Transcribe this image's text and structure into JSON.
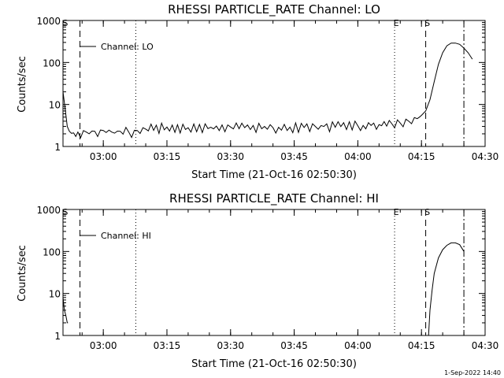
{
  "footer_timestamp": "1-Sep-2022 14:40",
  "chart_data": [
    {
      "type": "line",
      "title": "RHESSI PARTICLE_RATE Channel: LO",
      "xlabel": "Start Time (21-Oct-16 02:50:30)",
      "ylabel": "Counts/sec",
      "yscale": "log",
      "ylim": [
        1,
        1000
      ],
      "xlim": [
        "02:50:30",
        "04:30:00"
      ],
      "x_ticks": [
        "03:00",
        "03:15",
        "03:30",
        "03:45",
        "04:00",
        "04:15",
        "04:30"
      ],
      "y_ticks": [
        "1",
        "10",
        "100",
        "1000"
      ],
      "legend": "Channel: LO",
      "legend_position": "top-left",
      "markers": [
        {
          "label": "S",
          "time": "02:50:40",
          "style": "none"
        },
        {
          "label": "",
          "time": "02:54:30",
          "style": "dashed"
        },
        {
          "label": "",
          "time": "03:07:40",
          "style": "dotted"
        },
        {
          "label": "E",
          "time": "04:08:40",
          "style": "dotted"
        },
        {
          "label": "S",
          "time": "04:16:00",
          "style": "dashed"
        },
        {
          "label": "",
          "time": "04:25:00",
          "style": "dashdot"
        }
      ],
      "series": [
        {
          "name": "Channel: LO",
          "x": [
            "02:50:30",
            "02:51:00",
            "02:51:30",
            "02:52:00",
            "02:53:00",
            "02:54:00",
            "02:56:00",
            "02:58:00",
            "03:00:00",
            "03:02:00",
            "03:04:00",
            "03:06:00",
            "03:08:00",
            "03:10:00",
            "03:15:00",
            "03:20:00",
            "03:30:00",
            "03:40:00",
            "03:50:00",
            "04:00:00",
            "04:05:00",
            "04:08:00",
            "04:10:00",
            "04:12:00",
            "04:14:00",
            "04:15:00",
            "04:16:00",
            "04:17:00",
            "04:18:00",
            "04:19:00",
            "04:20:00",
            "04:21:00",
            "04:22:00",
            "04:23:00",
            "04:24:00",
            "04:25:00",
            "04:26:00",
            "04:27:00"
          ],
          "y": [
            20,
            8,
            3,
            2.3,
            2.1,
            2.2,
            2.2,
            2.3,
            2.4,
            2.2,
            2.3,
            2.2,
            2.4,
            2.6,
            2.9,
            2.8,
            2.9,
            2.8,
            3.0,
            3.1,
            3.3,
            3.5,
            3.6,
            4.0,
            4.6,
            5.5,
            7,
            13,
            35,
            90,
            170,
            250,
            290,
            290,
            270,
            220,
            170,
            120
          ],
          "noise": "spiky"
        }
      ]
    },
    {
      "type": "line",
      "title": "RHESSI PARTICLE_RATE Channel: HI",
      "xlabel": "Start Time (21-Oct-16 02:50:30)",
      "ylabel": "Counts/sec",
      "yscale": "log",
      "ylim": [
        1,
        1000
      ],
      "xlim": [
        "02:50:30",
        "04:30:00"
      ],
      "x_ticks": [
        "03:00",
        "03:15",
        "03:30",
        "03:45",
        "04:00",
        "04:15",
        "04:30"
      ],
      "y_ticks": [
        "1",
        "10",
        "100",
        "1000"
      ],
      "legend": "Channel: HI",
      "legend_position": "top-left",
      "markers": [
        {
          "label": "S",
          "time": "02:50:40",
          "style": "none"
        },
        {
          "label": "",
          "time": "02:54:30",
          "style": "dashed"
        },
        {
          "label": "",
          "time": "03:07:40",
          "style": "dotted"
        },
        {
          "label": "E",
          "time": "04:08:40",
          "style": "dotted"
        },
        {
          "label": "S",
          "time": "04:16:00",
          "style": "dashed"
        },
        {
          "label": "",
          "time": "04:25:00",
          "style": "dashdot"
        }
      ],
      "series": [
        {
          "name": "Channel: HI",
          "x": [
            "02:50:30",
            "02:50:50",
            "02:51:10",
            "02:51:30",
            "02:51:40"
          ],
          "y": [
            8,
            4,
            3,
            2,
            2
          ],
          "noise": "none"
        },
        {
          "name": "Channel: HI",
          "x": [
            "04:16:40",
            "04:17:00",
            "04:17:30",
            "04:18:00",
            "04:19:00",
            "04:20:00",
            "04:21:00",
            "04:22:00",
            "04:23:00",
            "04:24:00",
            "04:25:00"
          ],
          "y": [
            1,
            4,
            12,
            30,
            70,
            110,
            140,
            160,
            160,
            145,
            100
          ],
          "noise": "none"
        }
      ]
    }
  ]
}
